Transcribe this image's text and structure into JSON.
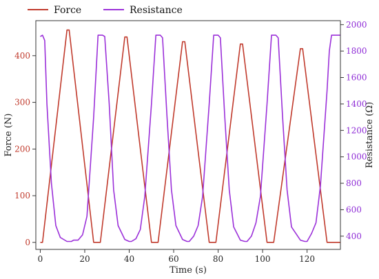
{
  "chart_data": {
    "type": "line",
    "xlabel": "Time (s)",
    "ylabel": "Force (N)",
    "y2label": "Resistance (Ω)",
    "xlim": [
      -2,
      135
    ],
    "ylim": [
      -15,
      475
    ],
    "y2lim": [
      300,
      2030
    ],
    "x_ticks": [
      0,
      20,
      40,
      60,
      80,
      100,
      120
    ],
    "y_ticks": [
      0,
      100,
      200,
      300,
      400
    ],
    "y2_ticks": [
      400,
      600,
      800,
      1000,
      1200,
      1400,
      1600,
      1800,
      2000
    ],
    "grid": false,
    "legend_placement": "top-left, outside plot",
    "series": [
      {
        "name": "Force",
        "axis": "left",
        "color": "#c0392b",
        "x": [
          0,
          1,
          12,
          13,
          24,
          25,
          27,
          38,
          39,
          50,
          53,
          64,
          65,
          76,
          79,
          90,
          91,
          102,
          105,
          117,
          118,
          129,
          135
        ],
        "y": [
          0,
          0,
          455,
          455,
          0,
          0,
          0,
          440,
          440,
          0,
          0,
          430,
          430,
          0,
          0,
          425,
          425,
          0,
          0,
          415,
          415,
          0,
          0
        ]
      },
      {
        "name": "Resistance",
        "axis": "right",
        "color": "#9b30d9",
        "x": [
          0,
          1,
          2,
          3,
          5,
          7,
          9,
          12,
          14,
          15,
          17,
          19,
          21,
          24,
          26,
          28,
          29,
          31,
          33,
          35,
          38,
          40,
          41,
          43,
          45,
          47,
          50,
          52,
          54,
          55,
          57,
          59,
          61,
          64,
          66,
          67,
          69,
          71,
          73,
          76,
          78,
          80,
          81,
          83,
          85,
          87,
          90,
          92,
          93,
          95,
          97,
          99,
          102,
          104,
          106,
          107,
          109,
          111,
          113,
          117,
          119,
          120,
          122,
          124,
          126,
          129,
          130,
          131,
          132,
          135
        ],
        "y": [
          1910,
          1920,
          1880,
          1400,
          800,
          480,
          390,
          360,
          360,
          370,
          370,
          410,
          550,
          1300,
          1920,
          1920,
          1910,
          1400,
          750,
          480,
          375,
          360,
          360,
          380,
          450,
          700,
          1400,
          1920,
          1920,
          1900,
          1300,
          750,
          480,
          375,
          360,
          360,
          400,
          480,
          700,
          1400,
          1920,
          1920,
          1900,
          1300,
          750,
          470,
          370,
          360,
          360,
          400,
          500,
          700,
          1400,
          1920,
          1920,
          1900,
          1300,
          750,
          470,
          370,
          360,
          360,
          420,
          500,
          780,
          1500,
          1800,
          1920,
          1920,
          1920
        ]
      }
    ]
  }
}
